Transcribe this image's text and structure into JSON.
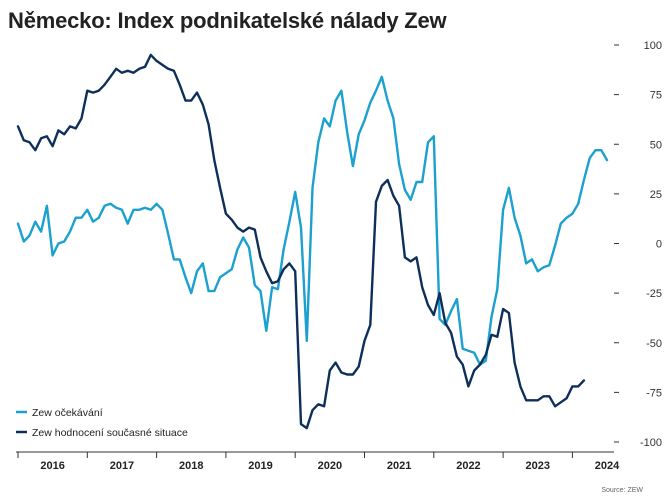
{
  "title": "Německo: Index podnikatelské nálady Zew",
  "source": "Source: ZEW",
  "chart_data": {
    "type": "line",
    "title": "Německo: Index podnikatelské nálady Zew",
    "xlabel": "",
    "ylabel": "",
    "ylim": [
      -100,
      100
    ],
    "yticks": [
      100,
      75,
      50,
      25,
      0,
      -25,
      -50,
      -75,
      -100
    ],
    "ytick_labels": [
      "100",
      "75",
      "50",
      "25",
      "0",
      "-25",
      "-50",
      "-75",
      "-100"
    ],
    "xlim": [
      2016,
      2024.75
    ],
    "xticks": [
      2016,
      2017,
      2018,
      2019,
      2020,
      2021,
      2022,
      2023,
      2024
    ],
    "xtick_labels": [
      "2016",
      "2017",
      "2018",
      "2019",
      "2020",
      "2021",
      "2022",
      "2023",
      "2024"
    ],
    "grid": false,
    "legend": "bottom-left",
    "x_start": "2016-01",
    "frequency": "monthly",
    "series": [
      {
        "name": "Zew očekávání",
        "color": "#1ba0d0",
        "values": [
          10,
          1,
          4,
          11,
          6,
          19,
          -6,
          0,
          1,
          6,
          13,
          13,
          17,
          11,
          13,
          19,
          20,
          18,
          17,
          10,
          17,
          17,
          18,
          17,
          20,
          17,
          5,
          -8,
          -8,
          -17,
          -25,
          -14,
          -10,
          -24,
          -24,
          -17,
          -15,
          -13,
          -3,
          3,
          -2,
          -21,
          -24,
          -44,
          -22,
          -23,
          -3,
          11,
          26,
          8,
          -49,
          28,
          51,
          63,
          59,
          72,
          77,
          56,
          39,
          55,
          62,
          71,
          77,
          84,
          72,
          63,
          40,
          27,
          22,
          31,
          31,
          51,
          54,
          -38,
          -41,
          -34,
          -28,
          -53,
          -54,
          -55,
          -61,
          -59,
          -37,
          -23,
          17,
          28,
          13,
          4,
          -10,
          -8,
          -14,
          -12,
          -11,
          -1,
          10,
          13,
          15,
          20,
          32,
          43,
          47,
          47,
          42
        ]
      },
      {
        "name": "Zew hodnocení současné situace",
        "color": "#0d2f5a",
        "values": [
          59,
          52,
          51,
          47,
          53,
          54,
          49,
          57,
          55,
          59,
          58,
          63,
          77,
          76,
          77,
          80,
          84,
          88,
          86,
          87,
          86,
          88,
          89,
          95,
          92,
          90,
          88,
          87,
          80,
          72,
          72,
          76,
          70,
          60,
          42,
          28,
          15,
          12,
          8,
          6,
          8,
          7,
          -7,
          -14,
          -20,
          -19,
          -13,
          -10,
          -14,
          -91,
          -93,
          -84,
          -81,
          -82,
          -64,
          -60,
          -65,
          -66,
          -66,
          -62,
          -49,
          -41,
          21,
          29,
          32,
          24,
          19,
          -7,
          -9,
          -7,
          -22,
          -31,
          -36,
          -25,
          -40,
          -45,
          -57,
          -61,
          -72,
          -64,
          -61,
          -56,
          -46,
          -47,
          -33,
          -35,
          -60,
          -72,
          -79,
          -79,
          -79,
          -77,
          -77,
          -82,
          -80,
          -78,
          -72,
          -72,
          -69
        ]
      }
    ]
  }
}
